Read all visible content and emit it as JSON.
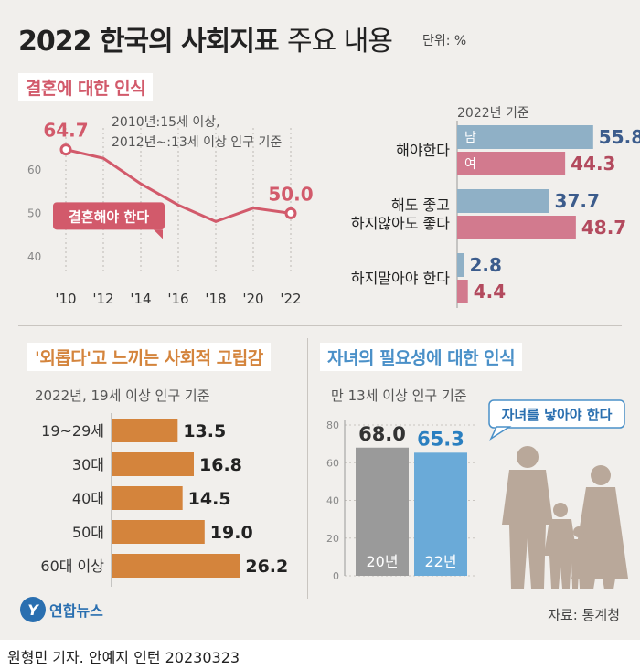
{
  "header": {
    "title_bold": "2022 한국의 사회지표",
    "title_light": "주요 내용",
    "unit": "단위: %"
  },
  "colors": {
    "marriage_line": "#d25a6b",
    "male": "#8fb0c6",
    "female": "#d27a8e",
    "male_text": "#3c5c8c",
    "female_text": "#b34a5e",
    "isolation_bar": "#d4843c",
    "bar_20": "#9a9a9a",
    "bar_22": "#6aaad8",
    "children_title": "#4a90c8",
    "isolation_title": "#d4843c"
  },
  "marriage": {
    "title": "결혼에 대한 인식",
    "note_line1": "2010년:15세 이상,",
    "note_line2": "2012년~:13세 이상 인구 기준",
    "badge": "결혼해야 한다"
  },
  "attitude": {
    "note": "2022년 기준",
    "male_label": "남",
    "female_label": "여"
  },
  "isolation": {
    "title": "'외롭다'고 느끼는 사회적 고립감",
    "note": "2022년, 19세 이상 인구 기준"
  },
  "children": {
    "title": "자녀의 필요성에 대한 인식",
    "note": "만 13세 이상 인구 기준",
    "bubble": "자녀를 낳아야 한다"
  },
  "footer": {
    "logo_mark": "Y",
    "logo_text": "연합뉴스",
    "source": "자료: 통계청",
    "credit": "원형민 기자. 안예지 인턴  20230323"
  },
  "chart_data": [
    {
      "type": "line",
      "title": "결혼에 대한 인식",
      "x": [
        "'10",
        "'12",
        "'14",
        "'16",
        "'18",
        "'20",
        "'22"
      ],
      "series": [
        {
          "name": "결혼해야 한다",
          "values": [
            64.7,
            62.7,
            56.8,
            51.9,
            48.1,
            51.2,
            50.0
          ]
        }
      ],
      "labeled_points": {
        "'10": "64.7",
        "'22": "50.0"
      },
      "yticks": [
        40,
        50,
        60
      ],
      "ylim": [
        37,
        68
      ],
      "grid": "vertical-dotted"
    },
    {
      "type": "bar",
      "orientation": "horizontal",
      "title": "2022년 기준",
      "categories": [
        [
          "해야한다"
        ],
        [
          "해도 좋고",
          "하지않아도 좋다"
        ],
        [
          "하지말아야 한다"
        ]
      ],
      "series": [
        {
          "name": "남",
          "values": [
            55.8,
            37.7,
            2.8
          ]
        },
        {
          "name": "여",
          "values": [
            44.3,
            48.7,
            4.4
          ]
        }
      ],
      "value_labels": [
        [
          "55.8",
          "37.7",
          "2.8"
        ],
        [
          "44.3",
          "48.7",
          "4.4"
        ]
      ],
      "xlim": [
        0,
        60
      ]
    },
    {
      "type": "bar",
      "orientation": "horizontal",
      "title": "'외롭다'고 느끼는 사회적 고립감",
      "categories": [
        "19~29세",
        "30대",
        "40대",
        "50대",
        "60대 이상"
      ],
      "values": [
        13.5,
        16.8,
        14.5,
        19.0,
        26.2
      ],
      "value_labels": [
        "13.5",
        "16.8",
        "14.5",
        "19.0",
        "26.2"
      ],
      "xlim": [
        0,
        28
      ]
    },
    {
      "type": "bar",
      "title": "자녀의 필요성에 대한 인식",
      "categories": [
        "20년",
        "22년"
      ],
      "values": [
        68.0,
        65.3
      ],
      "value_labels": [
        "68.0",
        "65.3"
      ],
      "yticks": [
        0,
        20,
        40,
        60,
        80
      ],
      "ylim": [
        0,
        80
      ]
    }
  ]
}
